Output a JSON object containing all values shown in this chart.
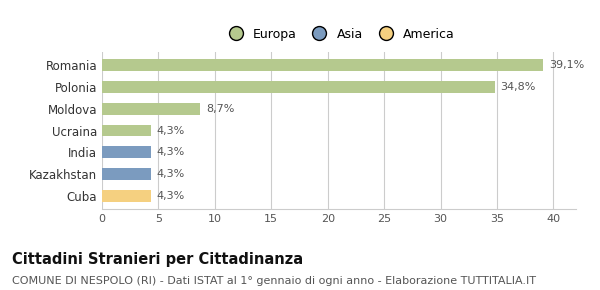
{
  "categories": [
    "Romania",
    "Polonia",
    "Moldova",
    "Ucraina",
    "India",
    "Kazakhstan",
    "Cuba"
  ],
  "values": [
    39.1,
    34.8,
    8.7,
    4.3,
    4.3,
    4.3,
    4.3
  ],
  "labels": [
    "39,1%",
    "34,8%",
    "8,7%",
    "4,3%",
    "4,3%",
    "4,3%",
    "4,3%"
  ],
  "colors": [
    "#b5c98e",
    "#b5c98e",
    "#b5c98e",
    "#b5c98e",
    "#7b9bbf",
    "#7b9bbf",
    "#f5d080"
  ],
  "legend": [
    {
      "label": "Europa",
      "color": "#b5c98e"
    },
    {
      "label": "Asia",
      "color": "#7b9bbf"
    },
    {
      "label": "America",
      "color": "#f5d080"
    }
  ],
  "xlim": [
    0,
    42
  ],
  "xticks": [
    0,
    5,
    10,
    15,
    20,
    25,
    30,
    35,
    40
  ],
  "title": "Cittadini Stranieri per Cittadinanza",
  "subtitle": "COMUNE DI NESPOLO (RI) - Dati ISTAT al 1° gennaio di ogni anno - Elaborazione TUTTITALIA.IT",
  "background_color": "#ffffff",
  "grid_color": "#cccccc",
  "bar_height": 0.55,
  "title_fontsize": 10.5,
  "subtitle_fontsize": 8,
  "label_fontsize": 8,
  "ytick_fontsize": 8.5,
  "xtick_fontsize": 8
}
